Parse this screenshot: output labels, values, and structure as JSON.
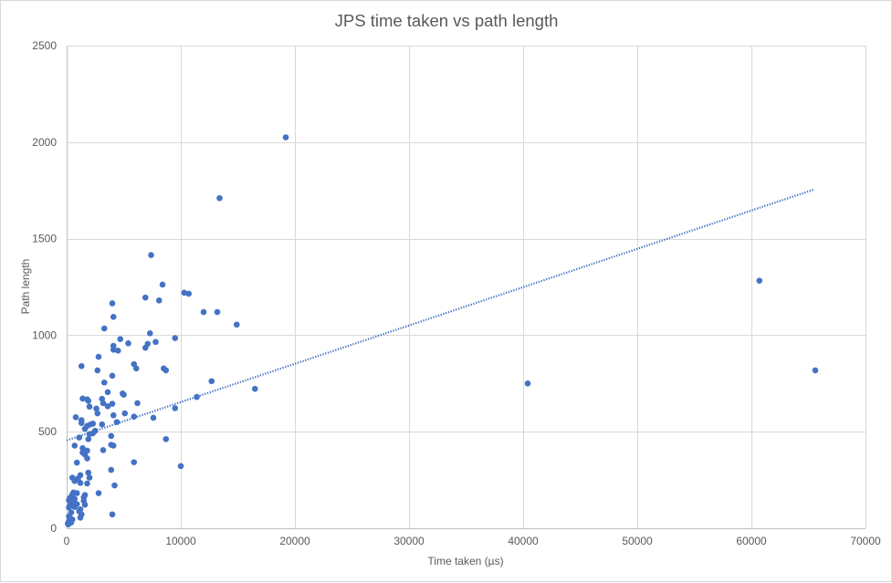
{
  "chart_data": {
    "type": "scatter",
    "title": "JPS time taken vs path length",
    "xlabel": "Time taken (µs)",
    "ylabel": "Path length",
    "xlim": [
      0,
      70000
    ],
    "ylim": [
      0,
      2500
    ],
    "xticks": [
      0,
      10000,
      20000,
      30000,
      40000,
      50000,
      60000,
      70000
    ],
    "yticks": [
      0,
      500,
      1000,
      1500,
      2000,
      2500
    ],
    "grid": true,
    "legend": "none",
    "point_color": "#4472c4",
    "trendline": {
      "type": "linear",
      "style": "dotted",
      "x": [
        0,
        65500
      ],
      "y": [
        455,
        1755
      ]
    },
    "points": [
      [
        19200,
        2025
      ],
      [
        13400,
        1710
      ],
      [
        7400,
        1415
      ],
      [
        10300,
        1220
      ],
      [
        10700,
        1215
      ],
      [
        8400,
        1262
      ],
      [
        6900,
        1195
      ],
      [
        8100,
        1180
      ],
      [
        12000,
        1120
      ],
      [
        13200,
        1120
      ],
      [
        14900,
        1055
      ],
      [
        7300,
        1010
      ],
      [
        9500,
        985
      ],
      [
        7800,
        965
      ],
      [
        7100,
        955
      ],
      [
        6900,
        935
      ],
      [
        4700,
        980
      ],
      [
        5400,
        958
      ],
      [
        4100,
        945
      ],
      [
        4100,
        925
      ],
      [
        4500,
        920
      ],
      [
        2800,
        888
      ],
      [
        3300,
        1035
      ],
      [
        4000,
        1165
      ],
      [
        4100,
        1095
      ],
      [
        1300,
        840
      ],
      [
        2700,
        818
      ],
      [
        4000,
        790
      ],
      [
        5900,
        850
      ],
      [
        6100,
        828
      ],
      [
        8500,
        828
      ],
      [
        8700,
        818
      ],
      [
        12700,
        762
      ],
      [
        16500,
        722
      ],
      [
        40400,
        750
      ],
      [
        60700,
        1282
      ],
      [
        65600,
        818
      ],
      [
        3300,
        755
      ],
      [
        3600,
        705
      ],
      [
        4900,
        698
      ],
      [
        5000,
        692
      ],
      [
        3100,
        670
      ],
      [
        1400,
        672
      ],
      [
        1800,
        668
      ],
      [
        1900,
        660
      ],
      [
        3200,
        648
      ],
      [
        3600,
        632
      ],
      [
        4000,
        645
      ],
      [
        6200,
        648
      ],
      [
        2000,
        630
      ],
      [
        2600,
        620
      ],
      [
        2700,
        595
      ],
      [
        4100,
        585
      ],
      [
        5100,
        595
      ],
      [
        5900,
        578
      ],
      [
        7600,
        572
      ],
      [
        9500,
        622
      ],
      [
        11400,
        680
      ],
      [
        4400,
        550
      ],
      [
        3100,
        538
      ],
      [
        2300,
        542
      ],
      [
        1300,
        545
      ],
      [
        1300,
        560
      ],
      [
        2100,
        538
      ],
      [
        1800,
        530
      ],
      [
        1600,
        515
      ],
      [
        2300,
        492
      ],
      [
        2500,
        505
      ],
      [
        2000,
        488
      ],
      [
        800,
        575
      ],
      [
        1100,
        470
      ],
      [
        1900,
        462
      ],
      [
        3900,
        478
      ],
      [
        8700,
        462
      ],
      [
        700,
        428
      ],
      [
        1400,
        415
      ],
      [
        1800,
        402
      ],
      [
        3900,
        432
      ],
      [
        4100,
        428
      ],
      [
        3200,
        405
      ],
      [
        1600,
        382
      ],
      [
        1400,
        392
      ],
      [
        1800,
        362
      ],
      [
        900,
        340
      ],
      [
        5900,
        342
      ],
      [
        10000,
        322
      ],
      [
        3900,
        302
      ],
      [
        1900,
        288
      ],
      [
        1200,
        275
      ],
      [
        2000,
        262
      ],
      [
        1000,
        258
      ],
      [
        500,
        262
      ],
      [
        700,
        245
      ],
      [
        1800,
        232
      ],
      [
        4200,
        222
      ],
      [
        2800,
        182
      ],
      [
        1600,
        172
      ],
      [
        1500,
        160
      ],
      [
        1500,
        142
      ],
      [
        1600,
        122
      ],
      [
        600,
        185
      ],
      [
        500,
        175
      ],
      [
        400,
        162
      ],
      [
        300,
        158
      ],
      [
        700,
        152
      ],
      [
        200,
        145
      ],
      [
        600,
        140
      ],
      [
        400,
        132
      ],
      [
        900,
        125
      ],
      [
        300,
        118
      ],
      [
        700,
        110
      ],
      [
        200,
        108
      ],
      [
        1200,
        98
      ],
      [
        1100,
        88
      ],
      [
        400,
        82
      ],
      [
        1300,
        72
      ],
      [
        1200,
        55
      ],
      [
        200,
        62
      ],
      [
        300,
        52
      ],
      [
        500,
        45
      ],
      [
        200,
        38
      ],
      [
        400,
        30
      ],
      [
        100,
        25
      ],
      [
        150,
        20
      ],
      [
        4000,
        72
      ],
      [
        900,
        182
      ],
      [
        1200,
        235
      ]
    ]
  }
}
